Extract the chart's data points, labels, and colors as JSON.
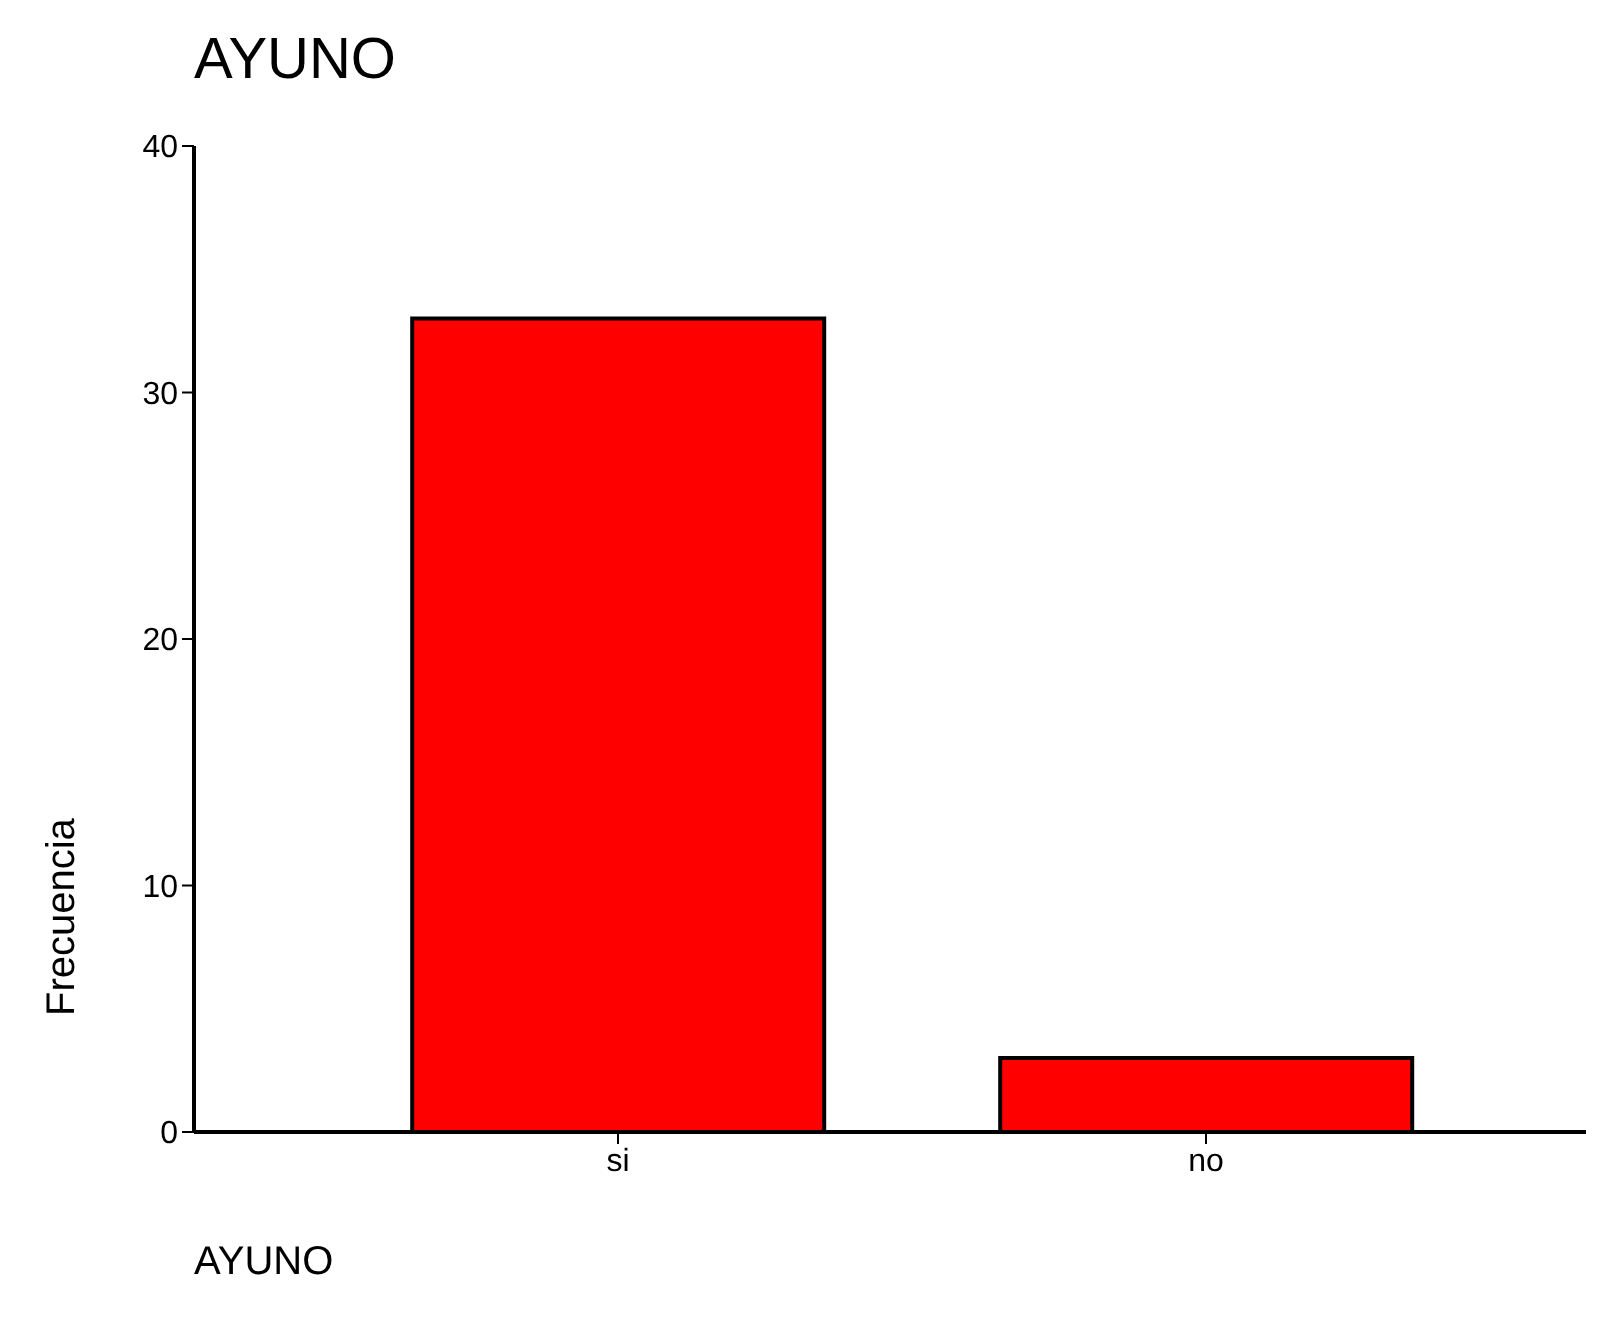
{
  "chart_data": {
    "type": "bar",
    "title": "AYUNO",
    "xlabel": "AYUNO",
    "ylabel": "Frecuencia",
    "categories": [
      "si",
      "no"
    ],
    "values": [
      33,
      3
    ],
    "color": "#ff0000",
    "ylim": [
      0,
      40
    ],
    "yticks": [
      0,
      10,
      20,
      30,
      40
    ]
  }
}
